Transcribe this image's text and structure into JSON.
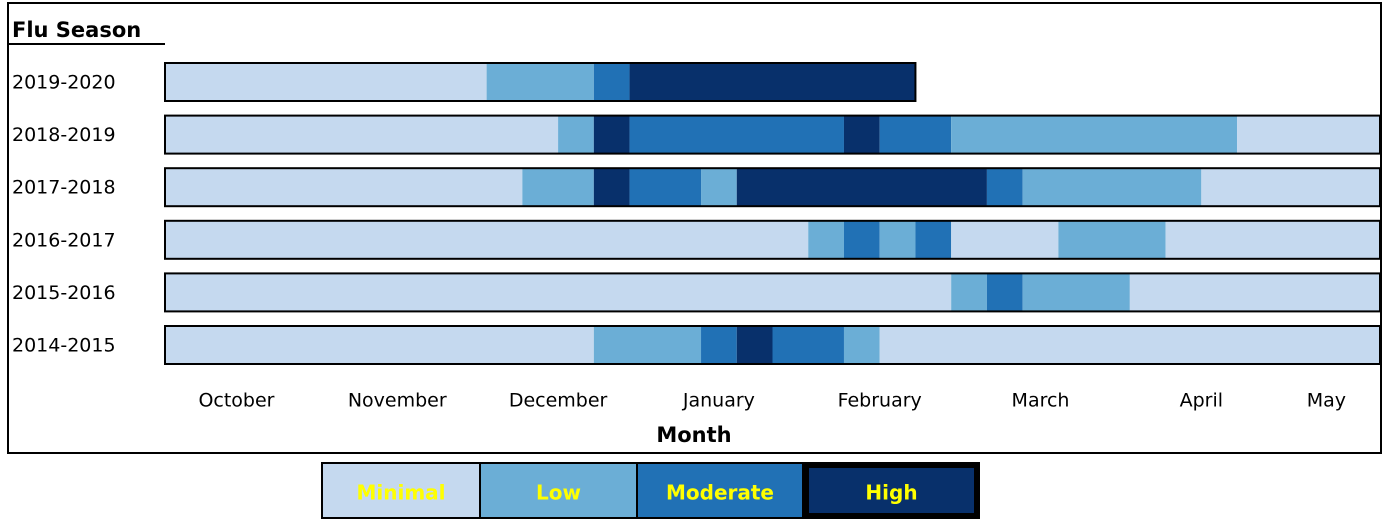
{
  "chart_data": {
    "type": "bar",
    "title": "Flu Season",
    "x_label": "Month",
    "xlim": [
      0,
      34
    ],
    "xticks": [
      {
        "value": 2,
        "label": "October"
      },
      {
        "value": 6.5,
        "label": "November"
      },
      {
        "value": 11,
        "label": "December"
      },
      {
        "value": 15.5,
        "label": "January"
      },
      {
        "value": 20,
        "label": "February"
      },
      {
        "value": 24.5,
        "label": "March"
      },
      {
        "value": 29,
        "label": "April"
      },
      {
        "value": 32.5,
        "label": "May"
      }
    ],
    "legend": [
      {
        "name": "Minimal",
        "color": "#c5d9ef"
      },
      {
        "name": "Low",
        "color": "#6baed6"
      },
      {
        "name": "Moderate",
        "color": "#2171b5"
      },
      {
        "name": "High",
        "color": "#08306b"
      }
    ],
    "series": [
      {
        "name": "2019-2020",
        "levels": [
          "Minimal",
          "Low",
          "Moderate",
          "High"
        ],
        "values": [
          9,
          3,
          1,
          8
        ]
      },
      {
        "name": "2018-2019",
        "levels": [
          "Minimal",
          "Low",
          "High",
          "Moderate",
          "High",
          "Moderate",
          "Low",
          "Minimal"
        ],
        "values": [
          11,
          1,
          1,
          6,
          1,
          2,
          8,
          4
        ]
      },
      {
        "name": "2017-2018",
        "levels": [
          "Minimal",
          "Low",
          "High",
          "Moderate",
          "Low",
          "High",
          "Moderate",
          "Low",
          "Minimal"
        ],
        "values": [
          10,
          2,
          1,
          2,
          1,
          7,
          1,
          5,
          5
        ]
      },
      {
        "name": "2016-2017",
        "levels": [
          "Minimal",
          "Low",
          "Moderate",
          "Low",
          "Moderate",
          "Minimal",
          "Low",
          "Minimal"
        ],
        "values": [
          18,
          1,
          1,
          1,
          1,
          3,
          3,
          6
        ]
      },
      {
        "name": "2015-2016",
        "levels": [
          "Minimal",
          "Low",
          "Moderate",
          "Low",
          "Minimal"
        ],
        "values": [
          22,
          1,
          1,
          3,
          7
        ]
      },
      {
        "name": "2014-2015",
        "levels": [
          "Minimal",
          "Low",
          "Moderate",
          "High",
          "Moderate",
          "Low",
          "Minimal"
        ],
        "values": [
          12,
          3,
          1,
          1,
          2,
          1,
          14
        ]
      }
    ]
  }
}
